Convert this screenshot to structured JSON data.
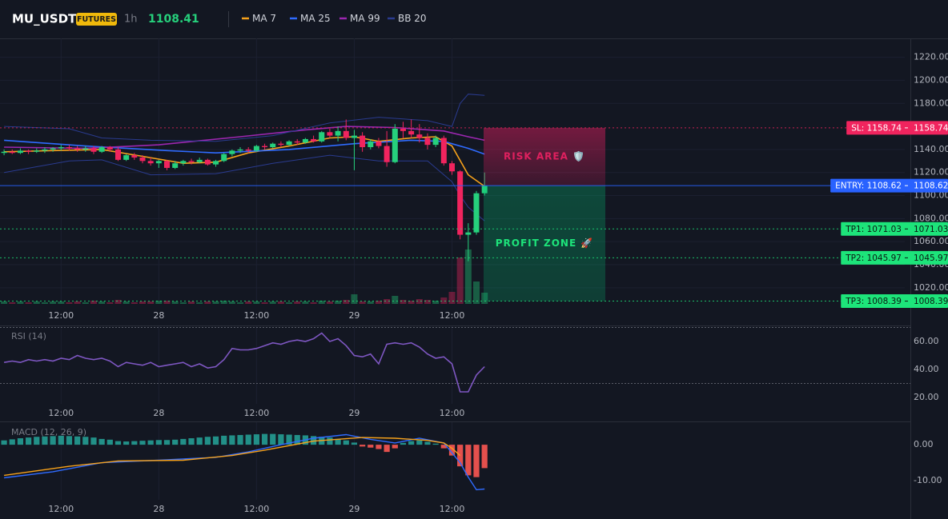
{
  "chart_data": [
    {
      "type": "candlestick",
      "title": "MU_USDT",
      "badge": "FUTURES",
      "interval": "1h",
      "last_price": 1108.41,
      "x": [
        0,
        1,
        2,
        3,
        4,
        5,
        6,
        7,
        8,
        9,
        10,
        11,
        12,
        13,
        14,
        15,
        16,
        17,
        18,
        19,
        20,
        21,
        22,
        23,
        24,
        25,
        26,
        27,
        28,
        29,
        30,
        31,
        32,
        33,
        34,
        35,
        36,
        37,
        38,
        39,
        40,
        41,
        42,
        43,
        44,
        45,
        46,
        47,
        48,
        49,
        50,
        51,
        52,
        53,
        54,
        55,
        56,
        57,
        58,
        59
      ],
      "open": [
        1137,
        1138,
        1137,
        1139,
        1138,
        1139,
        1140,
        1141,
        1142,
        1141,
        1140,
        1141,
        1138,
        1142,
        1140,
        1131,
        1135,
        1133,
        1130,
        1128,
        1130,
        1124,
        1128,
        1130,
        1129,
        1131,
        1127,
        1130,
        1136,
        1139,
        1140,
        1139,
        1143,
        1142,
        1145,
        1144,
        1147,
        1146,
        1149,
        1147,
        1155,
        1152,
        1156,
        1150,
        1152,
        1142,
        1147,
        1143,
        1129,
        1158,
        1156,
        1153,
        1150,
        1144,
        1150,
        1128,
        1121,
        1066,
        1068,
        1102
      ],
      "high": [
        1140,
        1140,
        1141,
        1140,
        1141,
        1142,
        1142,
        1144,
        1144,
        1143,
        1143,
        1143,
        1143,
        1143,
        1142,
        1136,
        1137,
        1135,
        1133,
        1131,
        1131,
        1130,
        1131,
        1132,
        1133,
        1132,
        1131,
        1137,
        1140,
        1142,
        1142,
        1144,
        1145,
        1146,
        1147,
        1148,
        1149,
        1150,
        1152,
        1156,
        1158,
        1160,
        1166,
        1157,
        1155,
        1149,
        1150,
        1156,
        1162,
        1164,
        1166,
        1162,
        1154,
        1152,
        1152,
        1130,
        1122,
        1076,
        1104,
        1120
      ],
      "low": [
        1135,
        1136,
        1136,
        1136,
        1137,
        1137,
        1138,
        1139,
        1139,
        1138,
        1138,
        1136,
        1137,
        1138,
        1130,
        1130,
        1131,
        1128,
        1126,
        1124,
        1122,
        1123,
        1126,
        1127,
        1128,
        1126,
        1125,
        1129,
        1134,
        1137,
        1137,
        1138,
        1140,
        1141,
        1142,
        1143,
        1144,
        1145,
        1146,
        1146,
        1150,
        1147,
        1148,
        1122,
        1138,
        1140,
        1141,
        1125,
        1128,
        1150,
        1150,
        1146,
        1140,
        1142,
        1126,
        1118,
        1062,
        1043,
        1066,
        1100
      ],
      "close": [
        1138,
        1137,
        1139,
        1138,
        1139,
        1140,
        1141,
        1142,
        1141,
        1140,
        1141,
        1138,
        1142,
        1140,
        1131,
        1135,
        1133,
        1130,
        1128,
        1130,
        1124,
        1128,
        1130,
        1129,
        1131,
        1127,
        1130,
        1136,
        1139,
        1140,
        1139,
        1143,
        1142,
        1145,
        1144,
        1147,
        1146,
        1149,
        1147,
        1155,
        1152,
        1156,
        1150,
        1152,
        1142,
        1147,
        1143,
        1129,
        1158,
        1156,
        1153,
        1150,
        1144,
        1150,
        1128,
        1121,
        1066,
        1068,
        1102,
        1108.41
      ],
      "volume": [
        3,
        2,
        3,
        2,
        3,
        2,
        3,
        3,
        2,
        3,
        2,
        4,
        3,
        2,
        5,
        3,
        2,
        3,
        3,
        4,
        4,
        3,
        2,
        3,
        2,
        3,
        3,
        4,
        3,
        2,
        3,
        3,
        2,
        3,
        3,
        2,
        3,
        3,
        2,
        4,
        3,
        4,
        5,
        12,
        3,
        3,
        4,
        6,
        10,
        5,
        4,
        6,
        5,
        4,
        8,
        15,
        58,
        68,
        28,
        14
      ],
      "up_color": "#26d07c",
      "down_color": "#f0245e",
      "xlim": [
        -0.5,
        110.6
      ],
      "xticks": [
        {
          "value": 7,
          "label": "12:00"
        },
        {
          "value": 19,
          "label": "28"
        },
        {
          "value": 31,
          "label": "12:00"
        },
        {
          "value": 43,
          "label": "29"
        },
        {
          "value": 55,
          "label": "12:00"
        }
      ],
      "ylim": [
        1006,
        1235
      ],
      "yticks": [
        {
          "value": 1220,
          "label": "1220.00"
        },
        {
          "value": 1200,
          "label": "1200.00"
        },
        {
          "value": 1180,
          "label": "1180.00"
        },
        {
          "value": 1140,
          "label": "1140.00"
        },
        {
          "value": 1120,
          "label": "1120.00"
        },
        {
          "value": 1100,
          "label": "1100.00"
        },
        {
          "value": 1080,
          "label": "1080.00"
        },
        {
          "value": 1060,
          "label": "1060.00"
        },
        {
          "value": 1040,
          "label": "1040.00"
        },
        {
          "value": 1020,
          "label": "1020.00"
        }
      ],
      "grid": true,
      "indicators": [
        {
          "name": "MA 7",
          "color": "#f7a21b",
          "x": [
            0,
            6,
            12,
            17,
            22,
            26,
            30,
            35,
            40,
            43,
            46,
            50,
            53,
            55,
            57,
            59
          ],
          "values": [
            1138,
            1139,
            1140,
            1134,
            1128,
            1129,
            1137,
            1143,
            1150,
            1151,
            1147,
            1150,
            1151,
            1143,
            1118,
            1108
          ]
        },
        {
          "name": "MA 25",
          "color": "#2f6bff",
          "x": [
            0,
            10,
            20,
            26,
            35,
            43,
            50,
            54,
            57,
            59
          ],
          "values": [
            1148,
            1143,
            1139,
            1137,
            1140,
            1145,
            1148,
            1147,
            1141,
            1136
          ]
        },
        {
          "name": "MA 99",
          "color": "#9c27b0",
          "x": [
            0,
            10,
            19,
            29,
            37,
            42,
            48,
            54,
            57,
            59
          ],
          "values": [
            1142,
            1141,
            1144,
            1151,
            1157,
            1160,
            1159,
            1156,
            1151,
            1148
          ]
        },
        {
          "name": "BB 20",
          "color": "#2a3b8f",
          "x": [
            0,
            8,
            12,
            18,
            26,
            33,
            40,
            46,
            52,
            55,
            56,
            57,
            59
          ],
          "upper": [
            1160,
            1158,
            1150,
            1148,
            1147,
            1152,
            1163,
            1168,
            1165,
            1160,
            1180,
            1188,
            1187
          ],
          "lower": [
            1120,
            1130,
            1131,
            1118,
            1119,
            1128,
            1135,
            1130,
            1130,
            1112,
            1100,
            1090,
            1078
          ]
        }
      ],
      "levels": [
        {
          "label": "SL: 1158.74",
          "value": 1158.74,
          "color": "#f0245e",
          "text_color": "#ffffff"
        },
        {
          "label": "ENTRY: 1108.62",
          "value": 1108.62,
          "color": "#2962ff",
          "text_color": "#ffffff"
        },
        {
          "label": "TP1: 1071.03",
          "value": 1071.03,
          "color": "#1de47a",
          "text_color": "#0b1a12"
        },
        {
          "label": "TP2: 1045.97",
          "value": 1045.97,
          "color": "#1de47a",
          "text_color": "#0b1a12"
        },
        {
          "label": "TP3: 1008.39",
          "value": 1008.39,
          "color": "#1de47a",
          "text_color": "#0b1a12"
        }
      ],
      "risk_label": "RISK AREA 🛡️",
      "profit_label": "PROFIT ZONE 🚀"
    },
    {
      "type": "line",
      "title": "RSI (14)",
      "color": "#7e57c2",
      "x": [
        0,
        1,
        2,
        3,
        4,
        5,
        6,
        7,
        8,
        9,
        10,
        11,
        12,
        13,
        14,
        15,
        16,
        17,
        18,
        19,
        20,
        21,
        22,
        23,
        24,
        25,
        26,
        27,
        28,
        29,
        30,
        31,
        32,
        33,
        34,
        35,
        36,
        37,
        38,
        39,
        40,
        41,
        42,
        43,
        44,
        45,
        46,
        47,
        48,
        49,
        50,
        51,
        52,
        53,
        54,
        55,
        56,
        57,
        58,
        59
      ],
      "values": [
        45,
        46,
        45,
        47,
        46,
        47,
        46,
        48,
        47,
        50,
        48,
        47,
        48,
        46,
        42,
        45,
        44,
        43,
        45,
        42,
        43,
        44,
        45,
        42,
        44,
        41,
        42,
        47,
        55,
        54,
        54,
        55,
        57,
        59,
        58,
        60,
        61,
        60,
        62,
        66,
        60,
        62,
        57,
        50,
        49,
        51,
        44,
        58,
        59,
        58,
        59,
        56,
        51,
        48,
        49,
        44,
        24,
        24,
        36,
        42
      ],
      "levels": [
        70,
        30
      ],
      "xlim": [
        -0.5,
        110.6
      ],
      "xticks": [
        {
          "value": 7,
          "label": "12:00"
        },
        {
          "value": 19,
          "label": "28"
        },
        {
          "value": 31,
          "label": "12:00"
        },
        {
          "value": 43,
          "label": "29"
        },
        {
          "value": 55,
          "label": "12:00"
        }
      ],
      "ylim": [
        15.4,
        69.7
      ],
      "yticks": [
        {
          "value": 60,
          "label": "60.00"
        },
        {
          "value": 40,
          "label": "40.00"
        },
        {
          "value": 20,
          "label": "20.00"
        }
      ]
    },
    {
      "type": "macd",
      "title": "MACD (12, 26, 9)",
      "x": [
        0,
        1,
        2,
        3,
        4,
        5,
        6,
        7,
        8,
        9,
        10,
        11,
        12,
        13,
        14,
        15,
        16,
        17,
        18,
        19,
        20,
        21,
        22,
        23,
        24,
        25,
        26,
        27,
        28,
        29,
        30,
        31,
        32,
        33,
        34,
        35,
        36,
        37,
        38,
        39,
        40,
        41,
        42,
        43,
        44,
        45,
        46,
        47,
        48,
        49,
        50,
        51,
        52,
        53,
        54,
        55,
        56,
        57,
        58,
        59
      ],
      "histogram": [
        1.2,
        1.5,
        1.8,
        2.0,
        2.2,
        2.3,
        2.4,
        2.5,
        2.4,
        2.3,
        2.2,
        2.0,
        1.6,
        1.4,
        1.0,
        0.9,
        1.0,
        1.1,
        1.2,
        1.3,
        1.3,
        1.4,
        1.6,
        1.8,
        2.0,
        2.2,
        2.3,
        2.5,
        2.6,
        2.7,
        2.8,
        2.9,
        3.0,
        3.0,
        2.9,
        2.8,
        2.7,
        2.6,
        2.4,
        2.2,
        2.0,
        1.6,
        1.2,
        0.6,
        -0.5,
        -0.8,
        -1.2,
        -2.0,
        -1.0,
        0.5,
        1.0,
        1.2,
        0.8,
        0.3,
        -1.0,
        -3.0,
        -6.0,
        -8.5,
        -9.0,
        -6.5
      ],
      "pos_color": "#26a69a",
      "neg_color": "#ef5350",
      "macd_line": {
        "color": "#2f6bff",
        "x": [
          0,
          6,
          12,
          20,
          26,
          30,
          34,
          38,
          42,
          45,
          48,
          51,
          54,
          56,
          57,
          58,
          59
        ],
        "values": [
          -9.2,
          -7.5,
          -5,
          -4.2,
          -3.5,
          -2,
          0,
          1.8,
          2.8,
          1.5,
          0.5,
          1.8,
          0.5,
          -5,
          -9,
          -12.5,
          -12.3
        ]
      },
      "signal_line": {
        "color": "#f7a21b",
        "x": [
          0,
          8,
          14,
          22,
          28,
          32,
          38,
          44,
          48,
          52,
          54,
          55,
          56
        ],
        "values": [
          -8.5,
          -6,
          -4.5,
          -4.3,
          -3,
          -1.5,
          1,
          2,
          1.8,
          1.2,
          0.5,
          -1,
          -3
        ]
      },
      "xlim": [
        -0.5,
        110.6
      ],
      "xticks": [
        {
          "value": 7,
          "label": "12:00"
        },
        {
          "value": 19,
          "label": "28"
        },
        {
          "value": 31,
          "label": "12:00"
        },
        {
          "value": 43,
          "label": "29"
        },
        {
          "value": 55,
          "label": "12:00"
        }
      ],
      "ylim": [
        -15.3,
        5.8
      ],
      "yticks": [
        {
          "value": 0,
          "label": "0.00"
        },
        {
          "value": -10,
          "label": "-10.00"
        }
      ]
    }
  ]
}
